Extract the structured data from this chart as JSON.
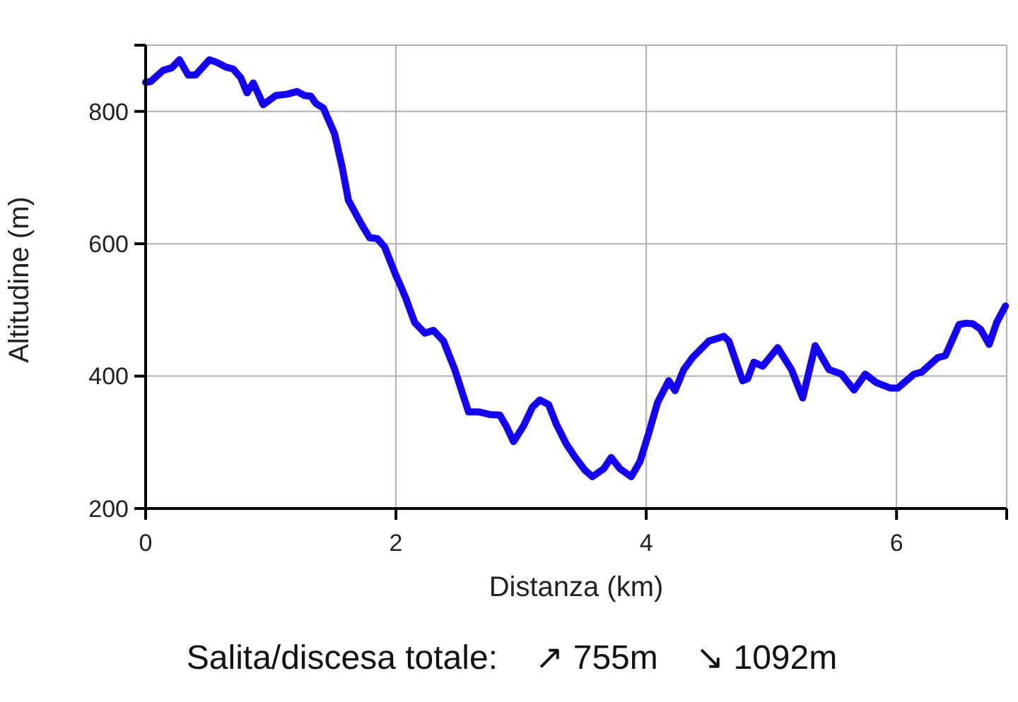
{
  "chart_data": {
    "type": "line",
    "xlabel": "Distanza (km)",
    "ylabel": "Altitudine (m)",
    "annotations": [
      "Salita/discesa totale:    ↗ 755m    ↘ 1092m"
    ],
    "xlim": [
      0,
      6.88
    ],
    "ylim": [
      200,
      900
    ],
    "xticks": [
      0,
      2,
      4,
      6,
      {
        "value": 6.88,
        "label": null
      }
    ],
    "yticks": [
      200,
      400,
      600,
      800,
      {
        "value": 900,
        "label": null
      }
    ],
    "grid": true,
    "series": [
      {
        "color": "#1400f5",
        "x": [
          0,
          0.04,
          0.14,
          0.21,
          0.27,
          0.34,
          0.4,
          0.51,
          0.57,
          0.64,
          0.7,
          0.76,
          0.81,
          0.86,
          0.94,
          1.04,
          1.13,
          1.21,
          1.27,
          1.32,
          1.36,
          1.42,
          1.51,
          1.57,
          1.62,
          1.72,
          1.79,
          1.85,
          1.91,
          2.0,
          2.04,
          2.08,
          2.15,
          2.23,
          2.3,
          2.38,
          2.47,
          2.58,
          2.66,
          2.75,
          2.83,
          2.88,
          2.94,
          3.02,
          3.09,
          3.15,
          3.22,
          3.28,
          3.36,
          3.43,
          3.51,
          3.57,
          3.66,
          3.72,
          3.79,
          3.88,
          3.95,
          4.02,
          4.09,
          4.18,
          4.23,
          4.3,
          4.37,
          4.5,
          4.62,
          4.66,
          4.77,
          4.81,
          4.86,
          4.93,
          5.05,
          5.16,
          5.25,
          5.35,
          5.46,
          5.56,
          5.66,
          5.75,
          5.84,
          5.95,
          6.01,
          6.14,
          6.2,
          6.33,
          6.39,
          6.5,
          6.56,
          6.61,
          6.67,
          6.74,
          6.8,
          6.87
        ],
        "values": [
          844,
          845,
          862,
          866,
          878,
          855,
          855,
          878,
          874,
          867,
          864,
          851,
          828,
          843,
          810,
          824,
          826,
          830,
          824,
          823,
          812,
          805,
          766,
          716,
          666,
          631,
          609,
          608,
          595,
          552,
          535,
          517,
          481,
          465,
          469,
          453,
          410,
          346,
          346,
          342,
          341,
          325,
          301,
          325,
          353,
          364,
          357,
          328,
          298,
          278,
          258,
          248,
          260,
          277,
          260,
          248,
          271,
          314,
          360,
          393,
          378,
          410,
          428,
          453,
          460,
          453,
          393,
          396,
          421,
          415,
          443,
          410,
          367,
          446,
          410,
          403,
          379,
          403,
          390,
          382,
          382,
          403,
          406,
          428,
          431,
          478,
          480,
          479,
          471,
          448,
          481,
          506
        ]
      }
    ]
  }
}
